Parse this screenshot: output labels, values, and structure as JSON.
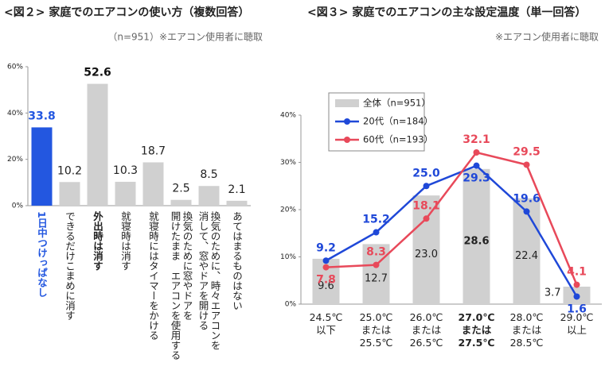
{
  "chart_data": [
    {
      "type": "bar",
      "title": "<図２> 家庭でのエアコンの使い方（複数回答）",
      "subtitle": "（n=951）※エアコン使用者に聴取",
      "categories": [
        "1日中つけっぱなし",
        "できるだけこまめに消す",
        "外出時は消す",
        "就寝時は消す",
        "就寝時にはタイマーをかける",
        "換気のために窓やドアを\n開けたまま　エアコンを使用する",
        "換気のために、時々エアコンを\n消して、窓やドアを開ける",
        "あてはまるものはない"
      ],
      "values": [
        33.8,
        10.2,
        52.6,
        10.3,
        18.7,
        2.5,
        8.5,
        2.1
      ],
      "colors": [
        "#2357e0",
        "#d0d0d0",
        "#d0d0d0",
        "#d0d0d0",
        "#d0d0d0",
        "#d0d0d0",
        "#d0d0d0",
        "#d0d0d0"
      ],
      "ylim": [
        0,
        60
      ],
      "yticks": [
        {
          "value": 0,
          "label": "0%"
        },
        {
          "value": 20,
          "label": "20%"
        },
        {
          "value": 40,
          "label": "40%"
        },
        {
          "value": 60,
          "label": "60%"
        }
      ],
      "grid": false
    },
    {
      "type": "combo",
      "title": "<図３> 家庭でのエアコンの主な設定温度（単一回答）",
      "subtitle": "※エアコン使用者に聴取",
      "categories": [
        "24.5℃\n以下",
        "25.0℃\nまたは\n25.5℃",
        "26.0℃\nまたは\n26.5℃",
        "27.0℃\nまたは\n27.5℃",
        "28.0℃\nまたは\n28.5℃",
        "29.0℃\n以上"
      ],
      "series": [
        {
          "name": "全体（n=951）",
          "type": "bar",
          "color": "#d0d0d0",
          "values": [
            9.6,
            12.7,
            23.0,
            28.6,
            22.4,
            3.7
          ],
          "value_labels": [
            "9.6",
            "12.7",
            "23.0",
            "28.6",
            "22.4",
            "3.7"
          ]
        },
        {
          "name": "20代（n=184）",
          "type": "line",
          "color": "#1f48d8",
          "values": [
            9.2,
            15.2,
            25.0,
            29.3,
            19.6,
            1.6
          ],
          "value_labels": [
            "9.2",
            "15.2",
            "25.0",
            "29.3",
            "19.6",
            "1.6"
          ]
        },
        {
          "name": "60代（n=193）",
          "type": "line",
          "color": "#e8495a",
          "values": [
            7.8,
            8.3,
            18.1,
            32.1,
            29.5,
            4.1
          ],
          "value_labels": [
            "7.8",
            "8.3",
            "18.1",
            "32.1",
            "29.5",
            "4.1"
          ]
        }
      ],
      "ylim": [
        0,
        40
      ],
      "yticks": [
        {
          "value": 0,
          "label": "0%"
        },
        {
          "value": 10,
          "label": "10%"
        },
        {
          "value": 20,
          "label": "20%"
        },
        {
          "value": 30,
          "label": "30%"
        },
        {
          "value": 40,
          "label": "40%"
        }
      ],
      "grid": false
    }
  ]
}
